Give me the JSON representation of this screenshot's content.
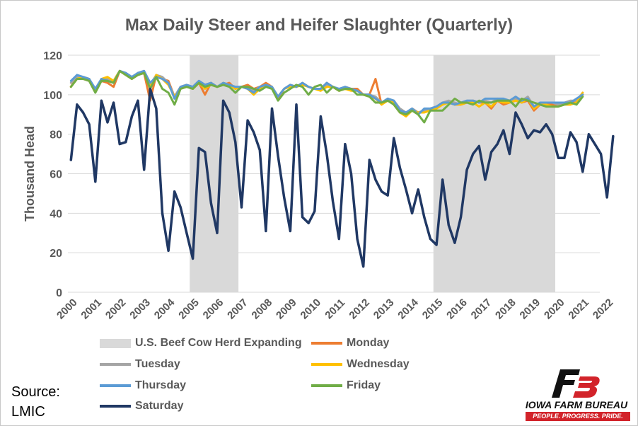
{
  "chart_data": {
    "type": "line",
    "title": "Max Daily Steer and Heifer Slaughter (Quarterly)",
    "ylabel": "Thousand Head",
    "xlabel": "",
    "ylim": [
      0,
      120
    ],
    "yticks": [
      0,
      20,
      40,
      60,
      80,
      100,
      120
    ],
    "xticks": [
      "2000",
      "2001",
      "2002",
      "2003",
      "2004",
      "2005",
      "2006",
      "2007",
      "2008",
      "2009",
      "2010",
      "2011",
      "2012",
      "2013",
      "2014",
      "2015",
      "2016",
      "2017",
      "2018",
      "2019",
      "2020",
      "2021",
      "2022"
    ],
    "x_start_year": 2000,
    "periods_per_year": 4,
    "grid": "horizontal",
    "legend_position": "bottom",
    "shaded_ranges": [
      {
        "name": "U.S. Beef Cow Herd Expanding",
        "start": 2005,
        "end": 2007,
        "color": "#d9d9d9"
      },
      {
        "name": "U.S. Beef Cow Herd Expanding",
        "start": 2015,
        "end": 2020,
        "color": "#d9d9d9"
      }
    ],
    "series": [
      {
        "name": "Monday",
        "color": "#ed7d31",
        "values": [
          104,
          109,
          108,
          107,
          103,
          107,
          106,
          104,
          112,
          110,
          108,
          110,
          111,
          97,
          110,
          108,
          107,
          99,
          104,
          105,
          103,
          106,
          100,
          106,
          104,
          105,
          106,
          103,
          104,
          105,
          103,
          104,
          106,
          104,
          98,
          103,
          105,
          104,
          106,
          104,
          103,
          103,
          106,
          104,
          102,
          104,
          103,
          103,
          100,
          100,
          108,
          95,
          98,
          95,
          91,
          90,
          93,
          91,
          92,
          93,
          94,
          96,
          96,
          95,
          95,
          96,
          97,
          96,
          96,
          93,
          97,
          95,
          96,
          97,
          96,
          97,
          92,
          95,
          95,
          95,
          95,
          95,
          95,
          97,
          100
        ]
      },
      {
        "name": "Tuesday",
        "color": "#a5a5a5",
        "values": [
          106,
          109,
          109,
          108,
          102,
          108,
          108,
          107,
          112,
          111,
          109,
          111,
          112,
          105,
          110,
          109,
          106,
          99,
          104,
          105,
          104,
          107,
          105,
          106,
          104,
          105,
          105,
          104,
          104,
          104,
          102,
          104,
          105,
          104,
          99,
          103,
          105,
          104,
          106,
          104,
          103,
          103,
          105,
          104,
          103,
          103,
          103,
          102,
          100,
          100,
          99,
          96,
          98,
          97,
          93,
          91,
          93,
          91,
          92,
          93,
          94,
          96,
          97,
          96,
          95,
          97,
          97,
          96,
          97,
          96,
          98,
          97,
          97,
          98,
          97,
          99,
          94,
          96,
          96,
          96,
          95,
          96,
          97,
          97,
          101
        ]
      },
      {
        "name": "Wednesday",
        "color": "#ffc000",
        "values": [
          104,
          108,
          109,
          108,
          102,
          108,
          109,
          107,
          112,
          110,
          108,
          111,
          111,
          104,
          110,
          108,
          105,
          99,
          103,
          104,
          103,
          106,
          103,
          105,
          104,
          106,
          105,
          103,
          104,
          103,
          100,
          103,
          105,
          104,
          99,
          103,
          104,
          104,
          105,
          104,
          103,
          102,
          104,
          104,
          102,
          103,
          102,
          102,
          100,
          99,
          98,
          95,
          97,
          96,
          91,
          89,
          92,
          91,
          91,
          92,
          93,
          95,
          96,
          95,
          95,
          96,
          96,
          94,
          96,
          94,
          97,
          96,
          96,
          97,
          96,
          98,
          93,
          95,
          95,
          94,
          94,
          95,
          95,
          96,
          101
        ]
      },
      {
        "name": "Thursday",
        "color": "#5b9bd5",
        "values": [
          107,
          110,
          109,
          108,
          103,
          108,
          107,
          106,
          112,
          111,
          109,
          111,
          112,
          106,
          109,
          108,
          106,
          98,
          104,
          105,
          104,
          107,
          105,
          106,
          104,
          106,
          105,
          104,
          104,
          103,
          101,
          104,
          105,
          104,
          99,
          103,
          105,
          104,
          106,
          104,
          103,
          103,
          106,
          104,
          103,
          104,
          103,
          102,
          100,
          100,
          98,
          96,
          98,
          97,
          92,
          91,
          93,
          90,
          93,
          93,
          94,
          96,
          96,
          95,
          96,
          97,
          97,
          96,
          98,
          98,
          98,
          98,
          97,
          99,
          97,
          98,
          94,
          96,
          96,
          96,
          96,
          96,
          96,
          98,
          100
        ]
      },
      {
        "name": "Friday",
        "color": "#70ad47",
        "values": [
          104,
          108,
          108,
          107,
          101,
          107,
          107,
          106,
          112,
          110,
          108,
          110,
          111,
          103,
          109,
          103,
          101,
          95,
          103,
          104,
          103,
          106,
          104,
          105,
          104,
          105,
          104,
          101,
          104,
          104,
          103,
          102,
          104,
          103,
          97,
          101,
          103,
          105,
          104,
          100,
          104,
          105,
          101,
          104,
          102,
          103,
          103,
          100,
          100,
          99,
          96,
          96,
          97,
          95,
          91,
          90,
          92,
          90,
          86,
          92,
          92,
          92,
          95,
          98,
          96,
          96,
          95,
          97,
          96,
          96,
          97,
          97,
          97,
          94,
          98,
          97,
          96,
          95,
          94,
          94,
          94,
          95,
          96,
          95,
          99
        ]
      },
      {
        "name": "Saturday",
        "color": "#203864",
        "values": [
          67,
          95,
          91,
          85,
          56,
          97,
          86,
          96,
          75,
          76,
          89,
          97,
          62,
          103,
          93,
          40,
          21,
          51,
          43,
          30,
          17,
          73,
          71,
          45,
          30,
          97,
          91,
          76,
          43,
          87,
          81,
          72,
          31,
          93,
          69,
          48,
          31,
          95,
          38,
          35,
          41,
          89,
          70,
          46,
          27,
          75,
          60,
          27,
          13,
          67,
          57,
          51,
          49,
          78,
          63,
          52,
          40,
          52,
          38,
          27,
          24,
          57,
          34,
          25,
          38,
          62,
          70,
          74,
          57,
          71,
          75,
          82,
          70,
          91,
          85,
          78,
          82,
          81,
          85,
          80,
          68,
          68,
          81,
          76,
          61,
          80,
          75,
          70,
          48,
          79
        ]
      }
    ]
  },
  "legend": {
    "cow_herd": "U.S. Beef Cow Herd Expanding",
    "monday": "Monday",
    "tuesday": "Tuesday",
    "wednesday": "Wednesday",
    "thursday": "Thursday",
    "friday": "Friday",
    "saturday": "Saturday"
  },
  "source": {
    "line1": "Source:",
    "line2": "LMIC"
  },
  "logo": {
    "name": "IOWA FARM BUREAU",
    "tagline": "PEOPLE. PROGRESS. PRIDE."
  },
  "colors": {
    "shade": "#d9d9d9",
    "gridline": "#d9d9d9",
    "axis_text": "#595959",
    "brand_red": "#d2232a"
  }
}
